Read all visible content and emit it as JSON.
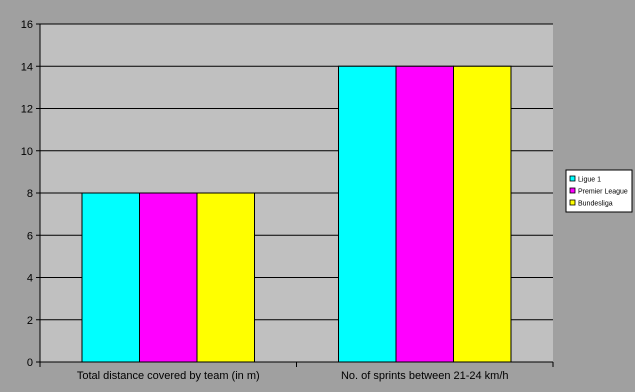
{
  "chart_data": {
    "type": "bar",
    "title": "",
    "xlabel": "",
    "ylabel": "",
    "categories": [
      "Total distance covered by team (in m)",
      "No. of sprints between 21-24 km/h"
    ],
    "series": [
      {
        "name": "Ligue 1",
        "values": [
          8,
          14
        ],
        "color": "#00FFFF"
      },
      {
        "name": "Premier League",
        "values": [
          8,
          14
        ],
        "color": "#FF00FF"
      },
      {
        "name": "Bundesliga",
        "values": [
          8,
          14
        ],
        "color": "#FFFF00"
      }
    ],
    "ylim": [
      0,
      16
    ],
    "yticks": [
      0,
      2,
      4,
      6,
      8,
      10,
      12,
      14,
      16
    ],
    "grid": true,
    "legend": "right",
    "colors": {
      "frame_background": "#A0A0A0",
      "plot_background": "#C0C0C0",
      "gridline": "#000000",
      "bar_outline": "#000000"
    }
  }
}
